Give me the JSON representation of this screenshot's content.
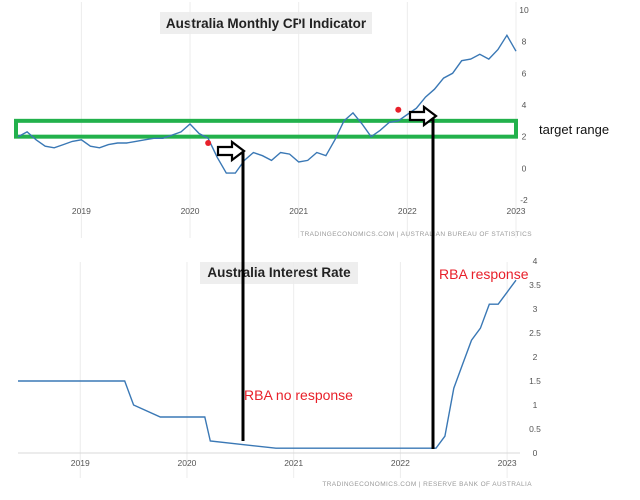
{
  "chart_data": [
    {
      "type": "line",
      "title": "Australia Monthly CPI Indicator",
      "source": "TRADINGECONOMICS.COM | AUSTRALIAN BUREAU OF STATISTICS",
      "x_ticks": [
        "2019",
        "2020",
        "2021",
        "2022",
        "2023"
      ],
      "y_ticks": [
        "-2",
        "0",
        "2",
        "4",
        "6",
        "8",
        "10"
      ],
      "ylim": [
        -2,
        10
      ],
      "xlim": [
        "2018-06",
        "2023-01"
      ],
      "series_color": "#3a78b5",
      "series": [
        {
          "x": [
            "2018-06",
            "2018-07",
            "2018-08",
            "2018-09",
            "2018-10",
            "2018-11",
            "2018-12",
            "2019-01",
            "2019-02",
            "2019-03",
            "2019-04",
            "2019-05",
            "2019-06",
            "2019-07",
            "2019-08",
            "2019-09",
            "2019-10",
            "2019-11",
            "2019-12",
            "2020-01",
            "2020-02",
            "2020-03",
            "2020-04",
            "2020-05",
            "2020-06",
            "2020-07",
            "2020-08",
            "2020-09",
            "2020-10",
            "2020-11",
            "2020-12",
            "2021-01",
            "2021-02",
            "2021-03",
            "2021-04",
            "2021-05",
            "2021-06",
            "2021-07",
            "2021-08",
            "2021-09",
            "2021-10",
            "2021-11",
            "2021-12",
            "2022-01",
            "2022-02",
            "2022-03",
            "2022-04",
            "2022-05",
            "2022-06",
            "2022-07",
            "2022-08",
            "2022-09",
            "2022-10",
            "2022-11",
            "2022-12",
            "2023-01"
          ],
          "y": [
            2.0,
            2.3,
            1.8,
            1.4,
            1.3,
            1.5,
            1.7,
            1.8,
            1.4,
            1.3,
            1.5,
            1.6,
            1.6,
            1.7,
            1.8,
            1.9,
            1.9,
            2.1,
            2.3,
            2.8,
            2.2,
            1.9,
            0.7,
            -0.3,
            -0.3,
            0.5,
            1.0,
            0.8,
            0.5,
            1.0,
            0.9,
            0.4,
            0.5,
            1.0,
            0.8,
            1.8,
            3.0,
            3.5,
            2.8,
            2.0,
            2.4,
            2.9,
            3.0,
            3.4,
            3.8,
            4.5,
            5.0,
            5.7,
            6.0,
            6.8,
            6.9,
            7.2,
            6.9,
            7.5,
            8.4,
            7.4
          ]
        }
      ],
      "target_range": [
        2,
        3
      ],
      "target_label": "target range",
      "markers": [
        {
          "x": "2020-03",
          "y": 1.6,
          "color": "#e8202a"
        },
        {
          "x": "2021-12",
          "y": 3.7,
          "color": "#e8202a"
        }
      ]
    },
    {
      "type": "line",
      "title": "Australia Interest Rate",
      "source": "TRADINGECONOMICS.COM | RESERVE BANK OF AUSTRALIA",
      "x_ticks": [
        "2019",
        "2020",
        "2021",
        "2022",
        "2023"
      ],
      "y_ticks": [
        "0",
        "0.5",
        "1",
        "1.5",
        "2",
        "2.5",
        "3",
        "3.5",
        "4"
      ],
      "ylim": [
        0,
        4
      ],
      "xlim": [
        "2018-06",
        "2023-02"
      ],
      "series_color": "#3a78b5",
      "series": [
        {
          "x": [
            "2018-06",
            "2019-06",
            "2019-07",
            "2019-10",
            "2020-03",
            "2020-03-20",
            "2020-11",
            "2022-05",
            "2022-06",
            "2022-07",
            "2022-08",
            "2022-09",
            "2022-10",
            "2022-11",
            "2022-12",
            "2023-02"
          ],
          "y": [
            1.5,
            1.5,
            1.0,
            0.75,
            0.75,
            0.25,
            0.1,
            0.1,
            0.35,
            1.35,
            1.85,
            2.35,
            2.6,
            3.1,
            3.1,
            3.6
          ]
        }
      ],
      "annotations": [
        "RBA no response",
        "RBA response"
      ]
    }
  ]
}
